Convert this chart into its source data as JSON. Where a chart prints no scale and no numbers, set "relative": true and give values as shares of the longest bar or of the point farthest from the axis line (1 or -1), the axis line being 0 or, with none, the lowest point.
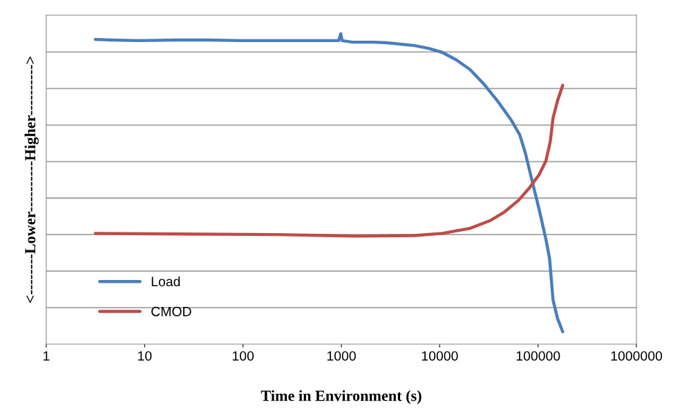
{
  "chart_data": {
    "type": "line",
    "relative": true,
    "log": "x",
    "xlabel": "Time in Environment (s)",
    "ylabel": "<--------Lower----------Higher---------->",
    "xlim": [
      1,
      1000000
    ],
    "xticks": [
      1,
      10,
      100,
      1000,
      10000,
      100000,
      1000000
    ],
    "grid": "y",
    "legend": "bottom left",
    "tick_labels": "x",
    "marker": "none",
    "line_style": "solid",
    "series": [
      {
        "name": "Load",
        "color": "#4a7ebb",
        "x": [
          3.15,
          4.5,
          8.6,
          22.7,
          43.4,
          97,
          219,
          492,
          939,
          986,
          1018,
          1297,
          2109,
          2912,
          5570,
          7690,
          10640,
          14700,
          20300,
          28100,
          38800,
          53600,
          65200,
          74200,
          87100,
          102000,
          120000,
          131000,
          142000,
          158000,
          178000
        ],
        "values": [
          0.982,
          0.98,
          0.978,
          0.98,
          0.98,
          0.978,
          0.978,
          0.978,
          0.978,
          1.0,
          0.978,
          0.973,
          0.973,
          0.971,
          0.962,
          0.953,
          0.94,
          0.916,
          0.885,
          0.838,
          0.783,
          0.721,
          0.674,
          0.616,
          0.525,
          0.437,
          0.339,
          0.275,
          0.142,
          0.082,
          0.04
        ]
      },
      {
        "name": "CMOD",
        "color": "#be4b48",
        "x": [
          3.15,
          19.3,
          219,
          1525,
          5570,
          10640,
          20300,
          33000,
          45600,
          63100,
          80400,
          102000,
          120000,
          133000,
          142000,
          158000,
          178000
        ],
        "values": [
          0.357,
          0.355,
          0.353,
          0.348,
          0.35,
          0.357,
          0.373,
          0.399,
          0.426,
          0.463,
          0.501,
          0.545,
          0.59,
          0.652,
          0.729,
          0.785,
          0.834
        ]
      }
    ]
  }
}
